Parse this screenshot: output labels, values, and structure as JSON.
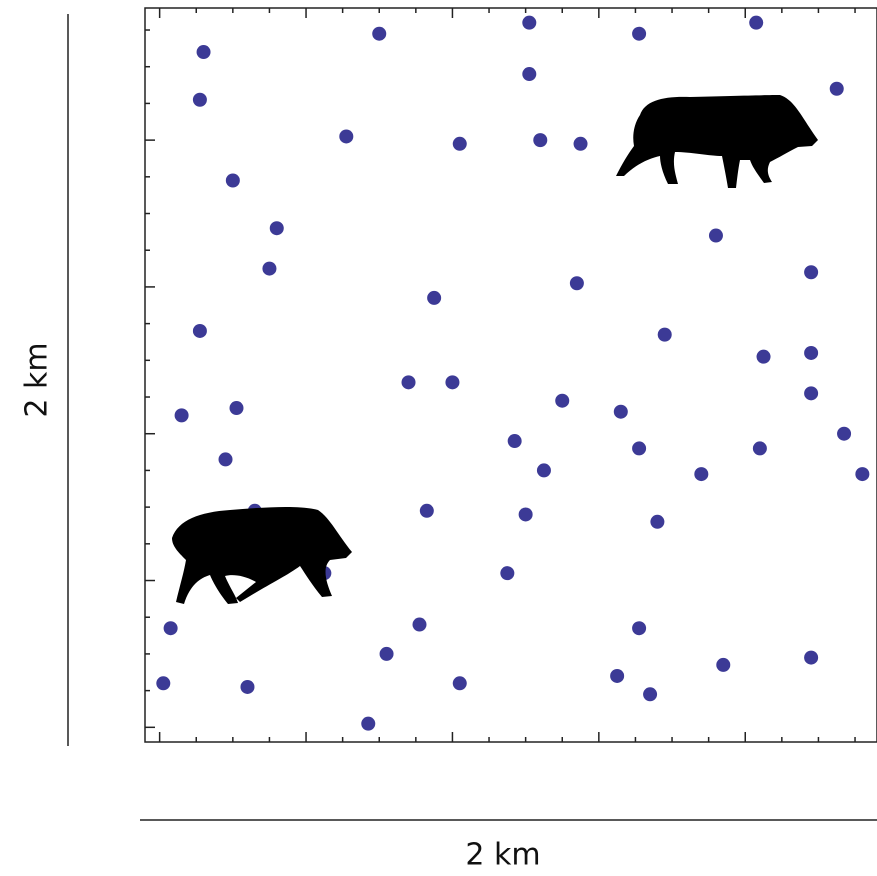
{
  "chart_data": {
    "type": "scatter",
    "x_label": "2 km",
    "y_label": "2 km",
    "color": "#3c3a96",
    "xlim": [
      0,
      2
    ],
    "ylim": [
      0,
      2
    ],
    "xticks": [
      0.04,
      0.14,
      0.24,
      0.34,
      0.44,
      0.54,
      0.64,
      0.74,
      0.84,
      0.94,
      1.04,
      1.14,
      1.24,
      1.34,
      1.44,
      1.54,
      1.64,
      1.74,
      1.84,
      1.94
    ],
    "yticks": [
      0.04,
      0.14,
      0.24,
      0.34,
      0.44,
      0.54,
      0.64,
      0.74,
      0.84,
      0.94,
      1.04,
      1.14,
      1.24,
      1.34,
      1.44,
      1.54,
      1.64,
      1.74,
      1.84,
      1.94
    ],
    "x": [
      0.16,
      0.15,
      0.64,
      1.05,
      1.35,
      1.67,
      1.05,
      1.89,
      0.55,
      0.86,
      1.08,
      1.19,
      0.24,
      0.36,
      1.56,
      0.34,
      1.82,
      0.79,
      1.18,
      0.15,
      1.42,
      1.69,
      1.82,
      0.72,
      0.84,
      0.1,
      0.25,
      1.14,
      1.3,
      1.82,
      1.91,
      1.01,
      1.35,
      1.68,
      0.22,
      1.09,
      1.52,
      1.96,
      0.77,
      1.04,
      1.4,
      0.3,
      0.11,
      0.49,
      0.99,
      0.07,
      0.75,
      1.35,
      0.66,
      1.82,
      1.58,
      0.05,
      0.28,
      0.86,
      1.29,
      1.38,
      0.61
    ],
    "y": [
      1.88,
      1.75,
      1.93,
      1.96,
      1.93,
      1.96,
      1.82,
      1.78,
      1.65,
      1.63,
      1.64,
      1.63,
      1.53,
      1.4,
      1.38,
      1.29,
      1.28,
      1.21,
      1.25,
      1.12,
      1.11,
      1.05,
      1.06,
      0.98,
      0.98,
      0.89,
      0.91,
      0.93,
      0.9,
      0.95,
      0.84,
      0.82,
      0.8,
      0.8,
      0.77,
      0.74,
      0.73,
      0.73,
      0.63,
      0.62,
      0.6,
      0.63,
      0.57,
      0.46,
      0.46,
      0.31,
      0.32,
      0.31,
      0.24,
      0.23,
      0.21,
      0.16,
      0.15,
      0.16,
      0.18,
      0.13,
      0.05
    ]
  }
}
